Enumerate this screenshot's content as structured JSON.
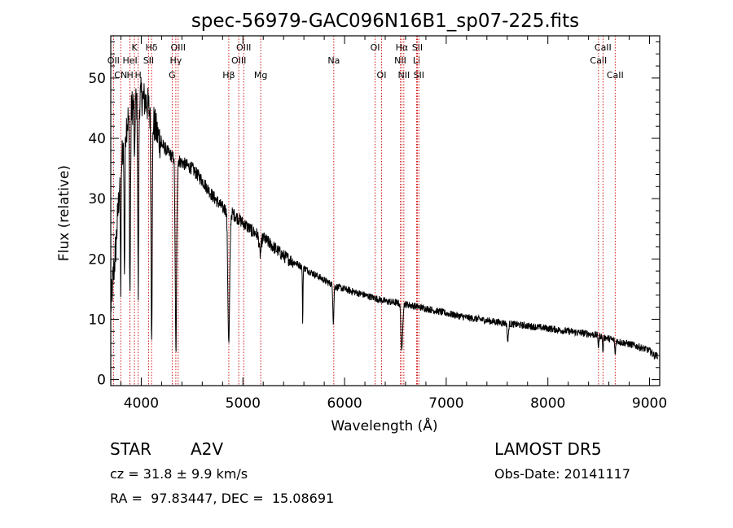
{
  "chart_data": {
    "type": "line",
    "title": "spec-56979-GAC096N16B1_sp07-225.fits",
    "xlabel": "Wavelength (Å)",
    "ylabel": "Flux (relative)",
    "xlim": [
      3700,
      9100
    ],
    "ylim": [
      -1,
      57
    ],
    "x_ticks": [
      4000,
      5000,
      6000,
      7000,
      8000,
      9000
    ],
    "y_ticks": [
      0,
      10,
      20,
      30,
      40,
      50
    ],
    "grid": false,
    "line_color": "#000000",
    "marker_color": "#cc0000",
    "continuum": {
      "x": [
        3700,
        3750,
        3800,
        3850,
        3900,
        3950,
        4000,
        4050,
        4100,
        4150,
        4200,
        4300,
        4400,
        4500,
        4600,
        4700,
        4800,
        4900,
        5000,
        5100,
        5200,
        5300,
        5400,
        5500,
        5600,
        5700,
        5800,
        5900,
        6000,
        6200,
        6400,
        6600,
        6800,
        7000,
        7200,
        7400,
        7600,
        7800,
        8000,
        8200,
        8400,
        8500,
        8600,
        8700,
        8800,
        8900,
        9000,
        9050
      ],
      "y": [
        12,
        22,
        36,
        42,
        45,
        46,
        47,
        46,
        44,
        41,
        39,
        37,
        36,
        35,
        33,
        30.5,
        28.5,
        27.5,
        26,
        24.5,
        23.5,
        22,
        20.5,
        19.5,
        18.5,
        17.5,
        16.5,
        15.5,
        15,
        14,
        13,
        12.5,
        11.8,
        11,
        10.3,
        9.8,
        9.3,
        8.9,
        8.5,
        8,
        7.6,
        7.3,
        6.8,
        6.3,
        5.9,
        5.4,
        4.8,
        4
      ]
    },
    "absorption_features": [
      {
        "center": 3798,
        "depth": 20,
        "width": 4
      },
      {
        "center": 3835,
        "depth": 22,
        "width": 4
      },
      {
        "center": 3889,
        "depth": 30,
        "width": 5
      },
      {
        "center": 3934,
        "depth": 12,
        "width": 3
      },
      {
        "center": 3970,
        "depth": 32,
        "width": 5
      },
      {
        "center": 4102,
        "depth": 35,
        "width": 6
      },
      {
        "center": 4341,
        "depth": 32,
        "width": 7
      },
      {
        "center": 4861,
        "depth": 22,
        "width": 9
      },
      {
        "center": 5170,
        "depth": 3,
        "width": 10
      },
      {
        "center": 5588,
        "depth": 9,
        "width": 3
      },
      {
        "center": 5890,
        "depth": 6,
        "width": 5
      },
      {
        "center": 6563,
        "depth": 8,
        "width": 8
      },
      {
        "center": 7606,
        "depth": 3,
        "width": 6
      },
      {
        "center": 8498,
        "depth": 2,
        "width": 4
      },
      {
        "center": 8542,
        "depth": 2.5,
        "width": 4
      },
      {
        "center": 8662,
        "depth": 2.5,
        "width": 4
      }
    ],
    "line_markers": [
      {
        "x": 3727,
        "row": 1,
        "label": "OII"
      },
      {
        "x": 3798,
        "row": 2,
        "label": "CN"
      },
      {
        "x": 3889,
        "row": 2,
        "label": "H"
      },
      {
        "x": 3970,
        "row": 2,
        "label": "H"
      },
      {
        "x": 3933,
        "row": 0,
        "label": "K"
      },
      {
        "x": 3889,
        "row": 1,
        "label": "HeI"
      },
      {
        "x": 4101,
        "row": 0,
        "label": "Hδ"
      },
      {
        "x": 4072,
        "row": 1,
        "label": "SII"
      },
      {
        "x": 4304,
        "row": 2,
        "label": "G"
      },
      {
        "x": 4340,
        "row": 1,
        "label": "Hγ"
      },
      {
        "x": 4363,
        "row": 0,
        "label": "OIII"
      },
      {
        "x": 4861,
        "row": 2,
        "label": "Hβ"
      },
      {
        "x": 4959,
        "row": 1,
        "label": "OIII"
      },
      {
        "x": 5007,
        "row": 0,
        "label": "OIII"
      },
      {
        "x": 5175,
        "row": 2,
        "label": "Mg"
      },
      {
        "x": 5894,
        "row": 1,
        "label": "Na"
      },
      {
        "x": 6300,
        "row": 0,
        "label": "OI"
      },
      {
        "x": 6364,
        "row": 2,
        "label": "OI"
      },
      {
        "x": 6548,
        "row": 1,
        "label": "NII"
      },
      {
        "x": 6563,
        "row": 0,
        "label": "Hα"
      },
      {
        "x": 6583,
        "row": 2,
        "label": "NII"
      },
      {
        "x": 6708,
        "row": 1,
        "label": "Li"
      },
      {
        "x": 6716,
        "row": 0,
        "label": "SII"
      },
      {
        "x": 6731,
        "row": 2,
        "label": "SII"
      },
      {
        "x": 8498,
        "row": 1,
        "label": "CaII"
      },
      {
        "x": 8542,
        "row": 0,
        "label": "CaII"
      },
      {
        "x": 8662,
        "row": 2,
        "label": "CaII"
      }
    ]
  },
  "info": {
    "object_class": "STAR",
    "subclass": "A2V",
    "survey": "LAMOST DR5",
    "redshift": "cz = 31.8 ± 9.9 km/s",
    "obs_date": "Obs-Date: 20141117",
    "coords": "RA =  97.83447, DEC =  15.08691"
  }
}
